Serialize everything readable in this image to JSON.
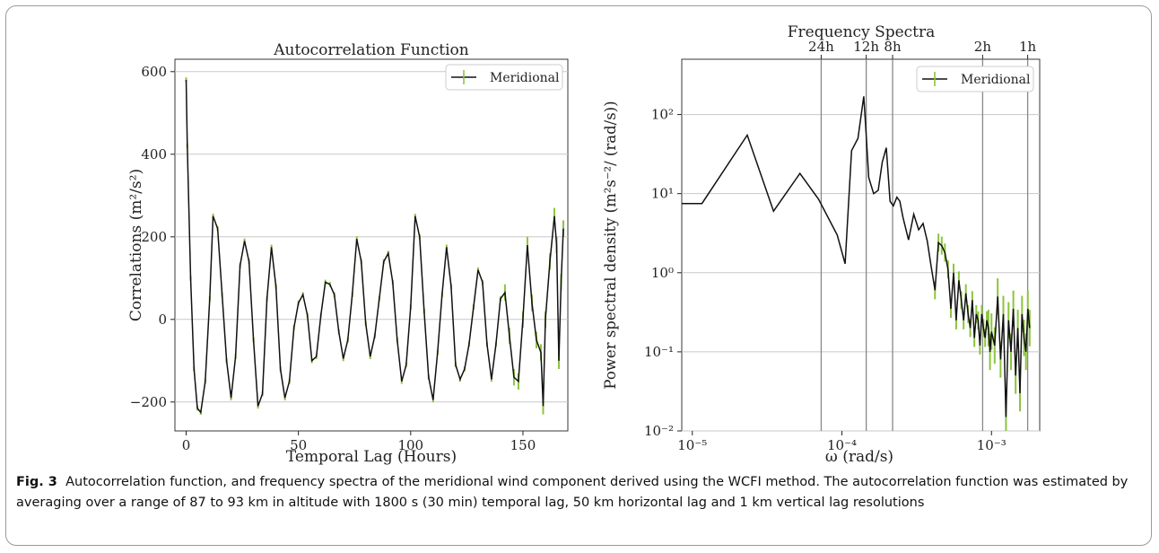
{
  "caption": {
    "label": "Fig. 3",
    "text": "Autocorrelation function, and frequency spectra of the meridional wind component derived using the WCFI method. The autocorrelation function was estimated by averaging over a range of 87 to 93 km in altitude with 1800 s (30 min) temporal lag, 50 km horizontal lag and 1 km vertical lag resolutions"
  },
  "chart_data": [
    {
      "type": "line",
      "title": "Autocorrelation Function",
      "xlabel": "Temporal Lag (Hours)",
      "ylabel": "Correlations (m²/s²)",
      "xlim": [
        -5,
        170
      ],
      "ylim": [
        -270,
        630
      ],
      "xticks": [
        0,
        50,
        100,
        150
      ],
      "yticks": [
        -200,
        0,
        200,
        400,
        600
      ],
      "xtick_labels": [
        "0",
        "50",
        "100",
        "150"
      ],
      "ytick_labels": [
        "−200",
        "0",
        "200",
        "400",
        "600"
      ],
      "grid": true,
      "legend": {
        "entries": [
          "Meridional"
        ],
        "placement": "top-right"
      },
      "colors": {
        "line": "#111111",
        "errorbar": "#8cc43e"
      },
      "series": [
        {
          "name": "Meridional",
          "x": [
            0,
            0.5,
            2,
            3.5,
            5,
            6.5,
            8.5,
            10.5,
            12,
            14,
            16,
            18,
            20,
            22,
            24,
            26,
            28,
            30,
            32,
            34,
            36,
            38,
            40,
            42,
            44,
            46,
            48,
            50,
            52,
            54,
            56,
            58,
            60,
            62,
            64,
            66,
            68,
            70,
            72,
            74,
            76,
            78,
            80,
            82,
            84,
            86,
            88,
            90,
            92,
            94,
            96,
            98,
            100,
            102,
            104,
            106,
            108,
            110,
            112,
            114,
            116,
            118,
            120,
            122,
            124,
            126,
            128,
            130,
            132,
            134,
            136,
            138,
            140,
            142,
            144,
            146,
            148,
            150,
            152,
            154,
            156,
            158,
            159,
            160,
            162,
            164,
            165,
            166,
            167,
            168
          ],
          "y": [
            580,
            420,
            100,
            -120,
            -215,
            -225,
            -150,
            50,
            250,
            220,
            60,
            -100,
            -190,
            -90,
            130,
            190,
            140,
            -50,
            -210,
            -180,
            50,
            175,
            80,
            -120,
            -190,
            -150,
            -20,
            40,
            60,
            10,
            -100,
            -90,
            10,
            90,
            85,
            60,
            -30,
            -95,
            -50,
            60,
            195,
            140,
            -10,
            -90,
            -40,
            50,
            140,
            160,
            90,
            -50,
            -150,
            -110,
            30,
            250,
            200,
            20,
            -140,
            -195,
            -80,
            60,
            175,
            80,
            -110,
            -145,
            -120,
            -60,
            30,
            120,
            90,
            -60,
            -145,
            -60,
            50,
            65,
            -40,
            -140,
            -150,
            0,
            180,
            40,
            -50,
            -80,
            -210,
            0,
            140,
            250,
            180,
            -100,
            90,
            220
          ]
        }
      ]
    },
    {
      "type": "line",
      "title": "Frequency Spectra",
      "xlabel": "ω (rad/s)",
      "ylabel": "Power spectral density (m²s⁻²/ (rad/s))",
      "xscale": "log",
      "yscale": "log",
      "xlim": [
        8.5e-06,
        0.0021
      ],
      "ylim": [
        0.01,
        500
      ],
      "xticks": [
        1e-05,
        0.0001,
        0.001
      ],
      "yticks": [
        0.01,
        0.1,
        1,
        10,
        100
      ],
      "xtick_labels": [
        "10⁻⁵",
        "10⁻⁴",
        "10⁻³"
      ],
      "ytick_labels": [
        "10⁻²",
        "10⁻¹",
        "10⁰",
        "10¹",
        "10²"
      ],
      "grid": true,
      "legend": {
        "entries": [
          "Meridional"
        ],
        "placement": "top-right"
      },
      "colors": {
        "line": "#111111",
        "errorbar": "#8cc43e",
        "period_line": "#888888"
      },
      "period_lines": [
        {
          "label": "24h",
          "omega": 7.27e-05
        },
        {
          "label": "12h",
          "omega": 0.0001454
        },
        {
          "label": "8h",
          "omega": 0.0002182
        },
        {
          "label": "2h",
          "omega": 0.0008727
        },
        {
          "label": "1h",
          "omega": 0.0017453
        }
      ],
      "series": [
        {
          "name": "Meridional",
          "x": [
            8.5e-06,
            1.16e-05,
            2.33e-05,
            3.49e-05,
            5.24e-05,
            6.98e-05,
            9.31e-05,
            0.000105,
            0.000116,
            0.000128,
            0.00014,
            0.000145,
            0.000151,
            0.000163,
            0.000175,
            0.000186,
            0.000198,
            0.00021,
            0.000221,
            0.000233,
            0.000244,
            0.000256,
            0.000279,
            0.000302,
            0.000326,
            0.000349,
            0.000372,
            0.000395,
            0.000419,
            0.000442,
            0.000465,
            0.000488,
            0.000512,
            0.000535,
            0.000558,
            0.000581,
            0.000605,
            0.000628,
            0.000651,
            0.000674,
            0.000698,
            0.000721,
            0.000744,
            0.000768,
            0.000791,
            0.000814,
            0.000837,
            0.000861,
            0.000884,
            0.000907,
            0.000931,
            0.000954,
            0.000977,
            0.001,
            0.00105,
            0.0011,
            0.00115,
            0.0012,
            0.00125,
            0.0013,
            0.00135,
            0.0014,
            0.00145,
            0.0015,
            0.00155,
            0.0016,
            0.00165,
            0.0017,
            0.00175,
            0.0018
          ],
          "y": [
            7.5,
            7.5,
            55,
            6,
            18,
            8.5,
            3,
            1.3,
            35,
            50,
            170,
            60,
            16,
            10,
            11,
            25,
            38,
            8,
            7,
            9,
            8,
            5,
            2.6,
            5.5,
            3.5,
            4.2,
            2.5,
            1.2,
            0.6,
            2.4,
            2.2,
            1.8,
            1.1,
            0.35,
            1,
            0.25,
            0.8,
            0.45,
            0.25,
            0.55,
            0.3,
            0.2,
            0.45,
            0.15,
            0.3,
            0.25,
            0.12,
            0.3,
            0.2,
            0.15,
            0.25,
            0.2,
            0.1,
            0.18,
            0.12,
            0.5,
            0.08,
            0.3,
            0.015,
            0.25,
            0.1,
            0.35,
            0.05,
            0.2,
            0.03,
            0.3,
            0.15,
            0.1,
            0.35,
            0.2
          ]
        }
      ]
    }
  ]
}
